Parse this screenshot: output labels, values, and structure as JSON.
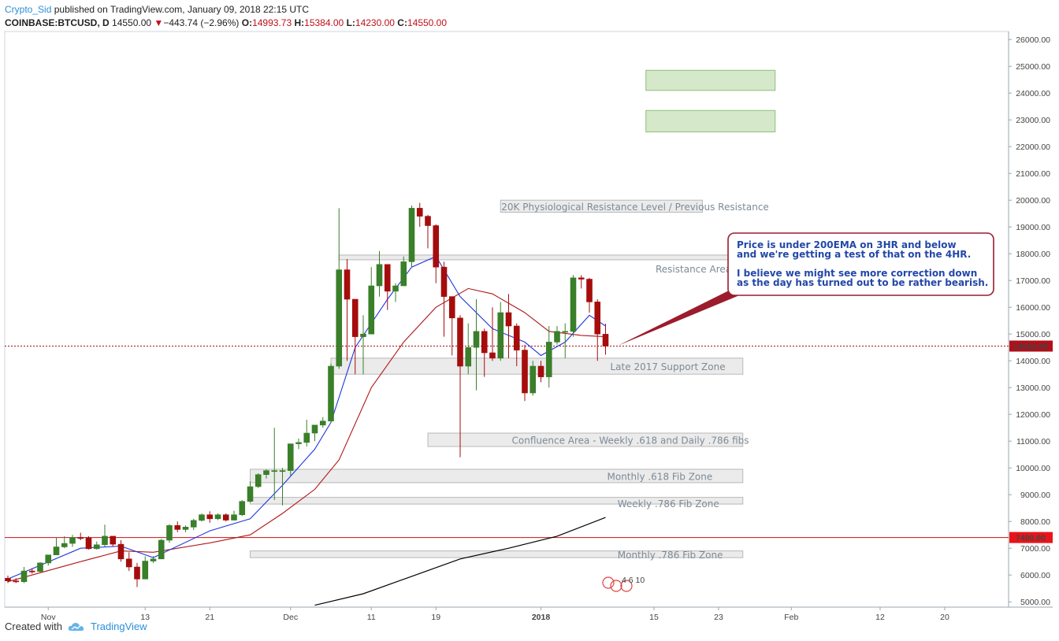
{
  "header": {
    "author": "Crypto_Sid",
    "published": "published on TradingView.com, January 09, 2018 22:15 UTC",
    "symbol": "COINBASE:BTCUSD, D",
    "last": "14550.00",
    "change_arrow": "▼",
    "change": "−443.74 (−2.96%)",
    "o_label": "O:",
    "o": "14993.73",
    "h_label": "H:",
    "h": "15384.00",
    "l_label": "L:",
    "l": "14230.00",
    "c_label": "C:",
    "c": "14550.00"
  },
  "footer": {
    "created_with": "Created with",
    "brand": "TradingView",
    "icon": "tradingview-cloud-icon"
  },
  "colors": {
    "up": "#3a7f2a",
    "down": "#a50d0d",
    "ema_fast": "#1f36e0",
    "ema_slow": "#b01818",
    "ema_200": "#000000",
    "zone_fill": "#e6e6e6",
    "zone_stroke": "#b8b8b8",
    "target_fill": "#d5e8c9",
    "target_stroke": "#8cc17a",
    "note_border": "#9b1c2c"
  },
  "chart_data": {
    "type": "candlestick",
    "ylim": [
      4800,
      26300
    ],
    "y_ticks": [
      5000,
      6000,
      7000,
      8000,
      9000,
      10000,
      11000,
      12000,
      13000,
      14000,
      15000,
      16000,
      17000,
      18000,
      19000,
      20000,
      21000,
      22000,
      23000,
      24000,
      25000,
      26000
    ],
    "x_ticks": [
      {
        "label": "Nov",
        "date": "2017-11-01"
      },
      {
        "label": "13",
        "date": "2017-11-13"
      },
      {
        "label": "21",
        "date": "2017-11-21"
      },
      {
        "label": "Dec",
        "date": "2017-12-01"
      },
      {
        "label": "11",
        "date": "2017-12-11"
      },
      {
        "label": "19",
        "date": "2017-12-19"
      },
      {
        "label": "2018",
        "date": "2018-01-01"
      },
      {
        "label": "15",
        "date": "2018-01-15"
      },
      {
        "label": "23",
        "date": "2018-01-23"
      },
      {
        "label": "Feb",
        "date": "2018-02-01"
      },
      {
        "label": "12",
        "date": "2018-02-12"
      },
      {
        "label": "20",
        "date": "2018-02-20"
      }
    ],
    "candles": [
      {
        "d": "2017-10-27",
        "o": 5880,
        "h": 5980,
        "l": 5700,
        "c": 5780
      },
      {
        "d": "2017-10-28",
        "o": 5780,
        "h": 5880,
        "l": 5700,
        "c": 5750
      },
      {
        "d": "2017-10-29",
        "o": 5750,
        "h": 6300,
        "l": 5700,
        "c": 6150
      },
      {
        "d": "2017-10-30",
        "o": 6150,
        "h": 6250,
        "l": 6050,
        "c": 6130
      },
      {
        "d": "2017-10-31",
        "o": 6130,
        "h": 6480,
        "l": 6100,
        "c": 6450
      },
      {
        "d": "2017-11-01",
        "o": 6450,
        "h": 6700,
        "l": 6350,
        "c": 6750
      },
      {
        "d": "2017-11-02",
        "o": 6750,
        "h": 7400,
        "l": 6750,
        "c": 7050
      },
      {
        "d": "2017-11-03",
        "o": 7050,
        "h": 7450,
        "l": 7000,
        "c": 7180
      },
      {
        "d": "2017-11-04",
        "o": 7180,
        "h": 7500,
        "l": 7050,
        "c": 7400
      },
      {
        "d": "2017-11-05",
        "o": 7400,
        "h": 7580,
        "l": 7300,
        "c": 7390
      },
      {
        "d": "2017-11-06",
        "o": 7390,
        "h": 7450,
        "l": 6950,
        "c": 6980
      },
      {
        "d": "2017-11-07",
        "o": 6980,
        "h": 7250,
        "l": 6950,
        "c": 7130
      },
      {
        "d": "2017-11-08",
        "o": 7130,
        "h": 7880,
        "l": 7060,
        "c": 7450
      },
      {
        "d": "2017-11-09",
        "o": 7450,
        "h": 7450,
        "l": 7050,
        "c": 7150
      },
      {
        "d": "2017-11-10",
        "o": 7150,
        "h": 7300,
        "l": 6500,
        "c": 6600
      },
      {
        "d": "2017-11-11",
        "o": 6600,
        "h": 6850,
        "l": 6150,
        "c": 6300
      },
      {
        "d": "2017-11-12",
        "o": 6300,
        "h": 6450,
        "l": 5550,
        "c": 5850
      },
      {
        "d": "2017-11-13",
        "o": 5850,
        "h": 6700,
        "l": 5850,
        "c": 6520
      },
      {
        "d": "2017-11-14",
        "o": 6520,
        "h": 6700,
        "l": 6450,
        "c": 6600
      },
      {
        "d": "2017-11-15",
        "o": 6600,
        "h": 7350,
        "l": 6600,
        "c": 7300
      },
      {
        "d": "2017-11-16",
        "o": 7300,
        "h": 7900,
        "l": 7200,
        "c": 7850
      },
      {
        "d": "2017-11-17",
        "o": 7850,
        "h": 8000,
        "l": 7600,
        "c": 7700
      },
      {
        "d": "2017-11-18",
        "o": 7700,
        "h": 7850,
        "l": 7600,
        "c": 7790
      },
      {
        "d": "2017-11-19",
        "o": 7790,
        "h": 8100,
        "l": 7680,
        "c": 8040
      },
      {
        "d": "2017-11-20",
        "o": 8040,
        "h": 8300,
        "l": 8000,
        "c": 8250
      },
      {
        "d": "2017-11-21",
        "o": 8250,
        "h": 8380,
        "l": 7950,
        "c": 8100
      },
      {
        "d": "2017-11-22",
        "o": 8100,
        "h": 8300,
        "l": 8050,
        "c": 8250
      },
      {
        "d": "2017-11-23",
        "o": 8250,
        "h": 8300,
        "l": 8000,
        "c": 8050
      },
      {
        "d": "2017-11-24",
        "o": 8050,
        "h": 8400,
        "l": 8030,
        "c": 8250
      },
      {
        "d": "2017-11-25",
        "o": 8250,
        "h": 8800,
        "l": 8200,
        "c": 8750
      },
      {
        "d": "2017-11-26",
        "o": 8750,
        "h": 9500,
        "l": 8700,
        "c": 9300
      },
      {
        "d": "2017-11-27",
        "o": 9300,
        "h": 9800,
        "l": 9250,
        "c": 9750
      },
      {
        "d": "2017-11-28",
        "o": 9750,
        "h": 9950,
        "l": 9600,
        "c": 9900
      },
      {
        "d": "2017-11-29",
        "o": 9900,
        "h": 11500,
        "l": 8800,
        "c": 9900
      },
      {
        "d": "2017-11-30",
        "o": 9900,
        "h": 10000,
        "l": 8600,
        "c": 9900
      },
      {
        "d": "2017-12-01",
        "o": 9900,
        "h": 10900,
        "l": 9700,
        "c": 10900
      },
      {
        "d": "2017-12-02",
        "o": 10900,
        "h": 11100,
        "l": 10700,
        "c": 10950
      },
      {
        "d": "2017-12-03",
        "o": 10950,
        "h": 11800,
        "l": 10800,
        "c": 11300
      },
      {
        "d": "2017-12-04",
        "o": 11300,
        "h": 11600,
        "l": 11000,
        "c": 11600
      },
      {
        "d": "2017-12-05",
        "o": 11600,
        "h": 11900,
        "l": 11500,
        "c": 11750
      },
      {
        "d": "2017-12-06",
        "o": 11750,
        "h": 13900,
        "l": 11700,
        "c": 13800
      },
      {
        "d": "2017-12-07",
        "o": 13800,
        "h": 19700,
        "l": 13700,
        "c": 17400
      },
      {
        "d": "2017-12-08",
        "o": 17400,
        "h": 17800,
        "l": 14000,
        "c": 16300
      },
      {
        "d": "2017-12-09",
        "o": 16300,
        "h": 16300,
        "l": 13500,
        "c": 14900
      },
      {
        "d": "2017-12-10",
        "o": 14900,
        "h": 15700,
        "l": 13500,
        "c": 15000
      },
      {
        "d": "2017-12-11",
        "o": 15000,
        "h": 17500,
        "l": 15000,
        "c": 16800
      },
      {
        "d": "2017-12-12",
        "o": 16800,
        "h": 18100,
        "l": 16400,
        "c": 17600
      },
      {
        "d": "2017-12-13",
        "o": 17600,
        "h": 17600,
        "l": 15900,
        "c": 16600
      },
      {
        "d": "2017-12-14",
        "o": 16600,
        "h": 16900,
        "l": 16200,
        "c": 16800
      },
      {
        "d": "2017-12-15",
        "o": 16800,
        "h": 17900,
        "l": 16800,
        "c": 17700
      },
      {
        "d": "2017-12-16",
        "o": 17700,
        "h": 19800,
        "l": 17500,
        "c": 19700
      },
      {
        "d": "2017-12-17",
        "o": 19700,
        "h": 19900,
        "l": 19000,
        "c": 19400
      },
      {
        "d": "2017-12-18",
        "o": 19400,
        "h": 19450,
        "l": 18200,
        "c": 19050
      },
      {
        "d": "2017-12-19",
        "o": 19050,
        "h": 19100,
        "l": 16900,
        "c": 17500
      },
      {
        "d": "2017-12-20",
        "o": 17500,
        "h": 17700,
        "l": 14900,
        "c": 16400
      },
      {
        "d": "2017-12-21",
        "o": 16400,
        "h": 16400,
        "l": 14200,
        "c": 15600
      },
      {
        "d": "2017-12-22",
        "o": 15600,
        "h": 15700,
        "l": 10400,
        "c": 13800
      },
      {
        "d": "2017-12-23",
        "o": 13800,
        "h": 15400,
        "l": 13500,
        "c": 14500
      },
      {
        "d": "2017-12-24",
        "o": 14500,
        "h": 16300,
        "l": 12900,
        "c": 15100
      },
      {
        "d": "2017-12-25",
        "o": 15100,
        "h": 15200,
        "l": 13400,
        "c": 14300
      },
      {
        "d": "2017-12-26",
        "o": 14300,
        "h": 16000,
        "l": 14000,
        "c": 14100
      },
      {
        "d": "2017-12-27",
        "o": 14100,
        "h": 16200,
        "l": 14000,
        "c": 15800
      },
      {
        "d": "2017-12-28",
        "o": 15800,
        "h": 16500,
        "l": 14100,
        "c": 15300
      },
      {
        "d": "2017-12-29",
        "o": 15300,
        "h": 15400,
        "l": 13800,
        "c": 14400
      },
      {
        "d": "2017-12-30",
        "o": 14400,
        "h": 14600,
        "l": 12500,
        "c": 12800
      },
      {
        "d": "2017-12-31",
        "o": 12800,
        "h": 14000,
        "l": 12700,
        "c": 13800
      },
      {
        "d": "2018-01-01",
        "o": 13800,
        "h": 14000,
        "l": 13200,
        "c": 13400
      },
      {
        "d": "2018-01-02",
        "o": 13400,
        "h": 15300,
        "l": 13000,
        "c": 14700
      },
      {
        "d": "2018-01-03",
        "o": 14700,
        "h": 15300,
        "l": 14600,
        "c": 15100
      },
      {
        "d": "2018-01-04",
        "o": 15100,
        "h": 15400,
        "l": 14100,
        "c": 15100
      },
      {
        "d": "2018-01-05",
        "o": 15100,
        "h": 17200,
        "l": 14900,
        "c": 17100
      },
      {
        "d": "2018-01-06",
        "o": 17100,
        "h": 17200,
        "l": 16700,
        "c": 17050
      },
      {
        "d": "2018-01-07",
        "o": 17050,
        "h": 17100,
        "l": 15800,
        "c": 16200
      },
      {
        "d": "2018-01-08",
        "o": 16200,
        "h": 16300,
        "l": 14000,
        "c": 15000
      },
      {
        "d": "2018-01-09",
        "o": 14993.73,
        "h": 15384,
        "l": 14230,
        "c": 14550
      }
    ],
    "ema_fast": [
      {
        "d": "2017-10-27",
        "v": 5850
      },
      {
        "d": "2017-11-05",
        "v": 7000
      },
      {
        "d": "2017-11-10",
        "v": 7080
      },
      {
        "d": "2017-11-14",
        "v": 6650
      },
      {
        "d": "2017-11-21",
        "v": 7650
      },
      {
        "d": "2017-11-26",
        "v": 8100
      },
      {
        "d": "2017-11-30",
        "v": 9350
      },
      {
        "d": "2017-12-04",
        "v": 10700
      },
      {
        "d": "2017-12-06",
        "v": 11700
      },
      {
        "d": "2017-12-09",
        "v": 14500
      },
      {
        "d": "2017-12-13",
        "v": 16300
      },
      {
        "d": "2017-12-16",
        "v": 17500
      },
      {
        "d": "2017-12-19",
        "v": 17900
      },
      {
        "d": "2017-12-22",
        "v": 16400
      },
      {
        "d": "2017-12-26",
        "v": 15200
      },
      {
        "d": "2017-12-30",
        "v": 14700
      },
      {
        "d": "2018-01-01",
        "v": 14200
      },
      {
        "d": "2018-01-04",
        "v": 14700
      },
      {
        "d": "2018-01-07",
        "v": 15700
      },
      {
        "d": "2018-01-09",
        "v": 15300
      }
    ],
    "ema_slow": [
      {
        "d": "2017-10-27",
        "v": 5750
      },
      {
        "d": "2017-11-05",
        "v": 6500
      },
      {
        "d": "2017-11-10",
        "v": 6900
      },
      {
        "d": "2017-11-14",
        "v": 6850
      },
      {
        "d": "2017-11-21",
        "v": 7200
      },
      {
        "d": "2017-11-26",
        "v": 7500
      },
      {
        "d": "2017-11-30",
        "v": 8300
      },
      {
        "d": "2017-12-04",
        "v": 9200
      },
      {
        "d": "2017-12-07",
        "v": 10300
      },
      {
        "d": "2017-12-11",
        "v": 13000
      },
      {
        "d": "2017-12-15",
        "v": 14700
      },
      {
        "d": "2017-12-19",
        "v": 16000
      },
      {
        "d": "2017-12-23",
        "v": 16700
      },
      {
        "d": "2017-12-26",
        "v": 16500
      },
      {
        "d": "2017-12-30",
        "v": 15800
      },
      {
        "d": "2018-01-02",
        "v": 15100
      },
      {
        "d": "2018-01-06",
        "v": 14950
      },
      {
        "d": "2018-01-09",
        "v": 14900
      }
    ],
    "ema_200": [
      {
        "d": "2017-12-04",
        "v": 4870
      },
      {
        "d": "2017-12-10",
        "v": 5300
      },
      {
        "d": "2017-12-16",
        "v": 5950
      },
      {
        "d": "2017-12-22",
        "v": 6600
      },
      {
        "d": "2017-12-28",
        "v": 7000
      },
      {
        "d": "2018-01-03",
        "v": 7450
      },
      {
        "d": "2018-01-09",
        "v": 8150
      }
    ],
    "h_lines": [
      {
        "name": "last-price-line",
        "value": 14550,
        "label": "14550.00",
        "color": "#a50d0d",
        "style": "dotted"
      },
      {
        "name": "level-7400-line",
        "value": 7400,
        "label": "7400.00",
        "color": "#cc1111",
        "style": "solid"
      }
    ],
    "zones": [
      {
        "name": "psych-resistance-zone",
        "label": "20K Physiological Resistance Level / Previous Resistance",
        "d0": "2017-12-27",
        "d1": "2018-01-21",
        "y0": 19550,
        "y1": 20000
      },
      {
        "name": "resistance-area-zone",
        "label": "Resistance Area",
        "d0": "2017-12-07",
        "d1": "2018-01-26",
        "y0": 17800,
        "y1": 17950
      },
      {
        "name": "support-zone",
        "label": "Late 2017 Support Zone",
        "d0": "2017-12-06",
        "d1": "2018-01-26",
        "y0": 13500,
        "y1": 14100
      },
      {
        "name": "confluence-zone",
        "label": "Confluence Area -  Weekly .618 and Daily .786 fibs",
        "d0": "2017-12-18",
        "d1": "2018-01-26",
        "y0": 10800,
        "y1": 11300
      },
      {
        "name": "monthly-618-zone",
        "label": "Monthly .618 Fib Zone",
        "d0": "2017-11-26",
        "d1": "2018-01-26",
        "y0": 9450,
        "y1": 9950
      },
      {
        "name": "weekly-786-zone",
        "label": "Weekly .786 Fib Zone",
        "d0": "2017-11-26",
        "d1": "2018-01-26",
        "y0": 8650,
        "y1": 8900
      },
      {
        "name": "monthly-786-zone",
        "label": "Monthly .786 Fib Zone",
        "d0": "2017-11-26",
        "d1": "2018-01-26",
        "y0": 6650,
        "y1": 6900
      }
    ],
    "targets": [
      {
        "name": "target-zone-upper",
        "d0": "2018-01-14",
        "d1": "2018-01-30",
        "y0": 24100,
        "y1": 24850
      },
      {
        "name": "target-zone-lower",
        "d0": "2018-01-14",
        "d1": "2018-01-30",
        "y0": 22550,
        "y1": 23350
      }
    ],
    "note": {
      "lines": [
        "Price is under 200EMA on 3HR and below",
        "and we're getting a test of that on the 4HR.",
        "",
        "I believe we might see more correction down",
        "as the day has turned out to be rather bearish."
      ]
    },
    "watermark": "4  6 10"
  }
}
